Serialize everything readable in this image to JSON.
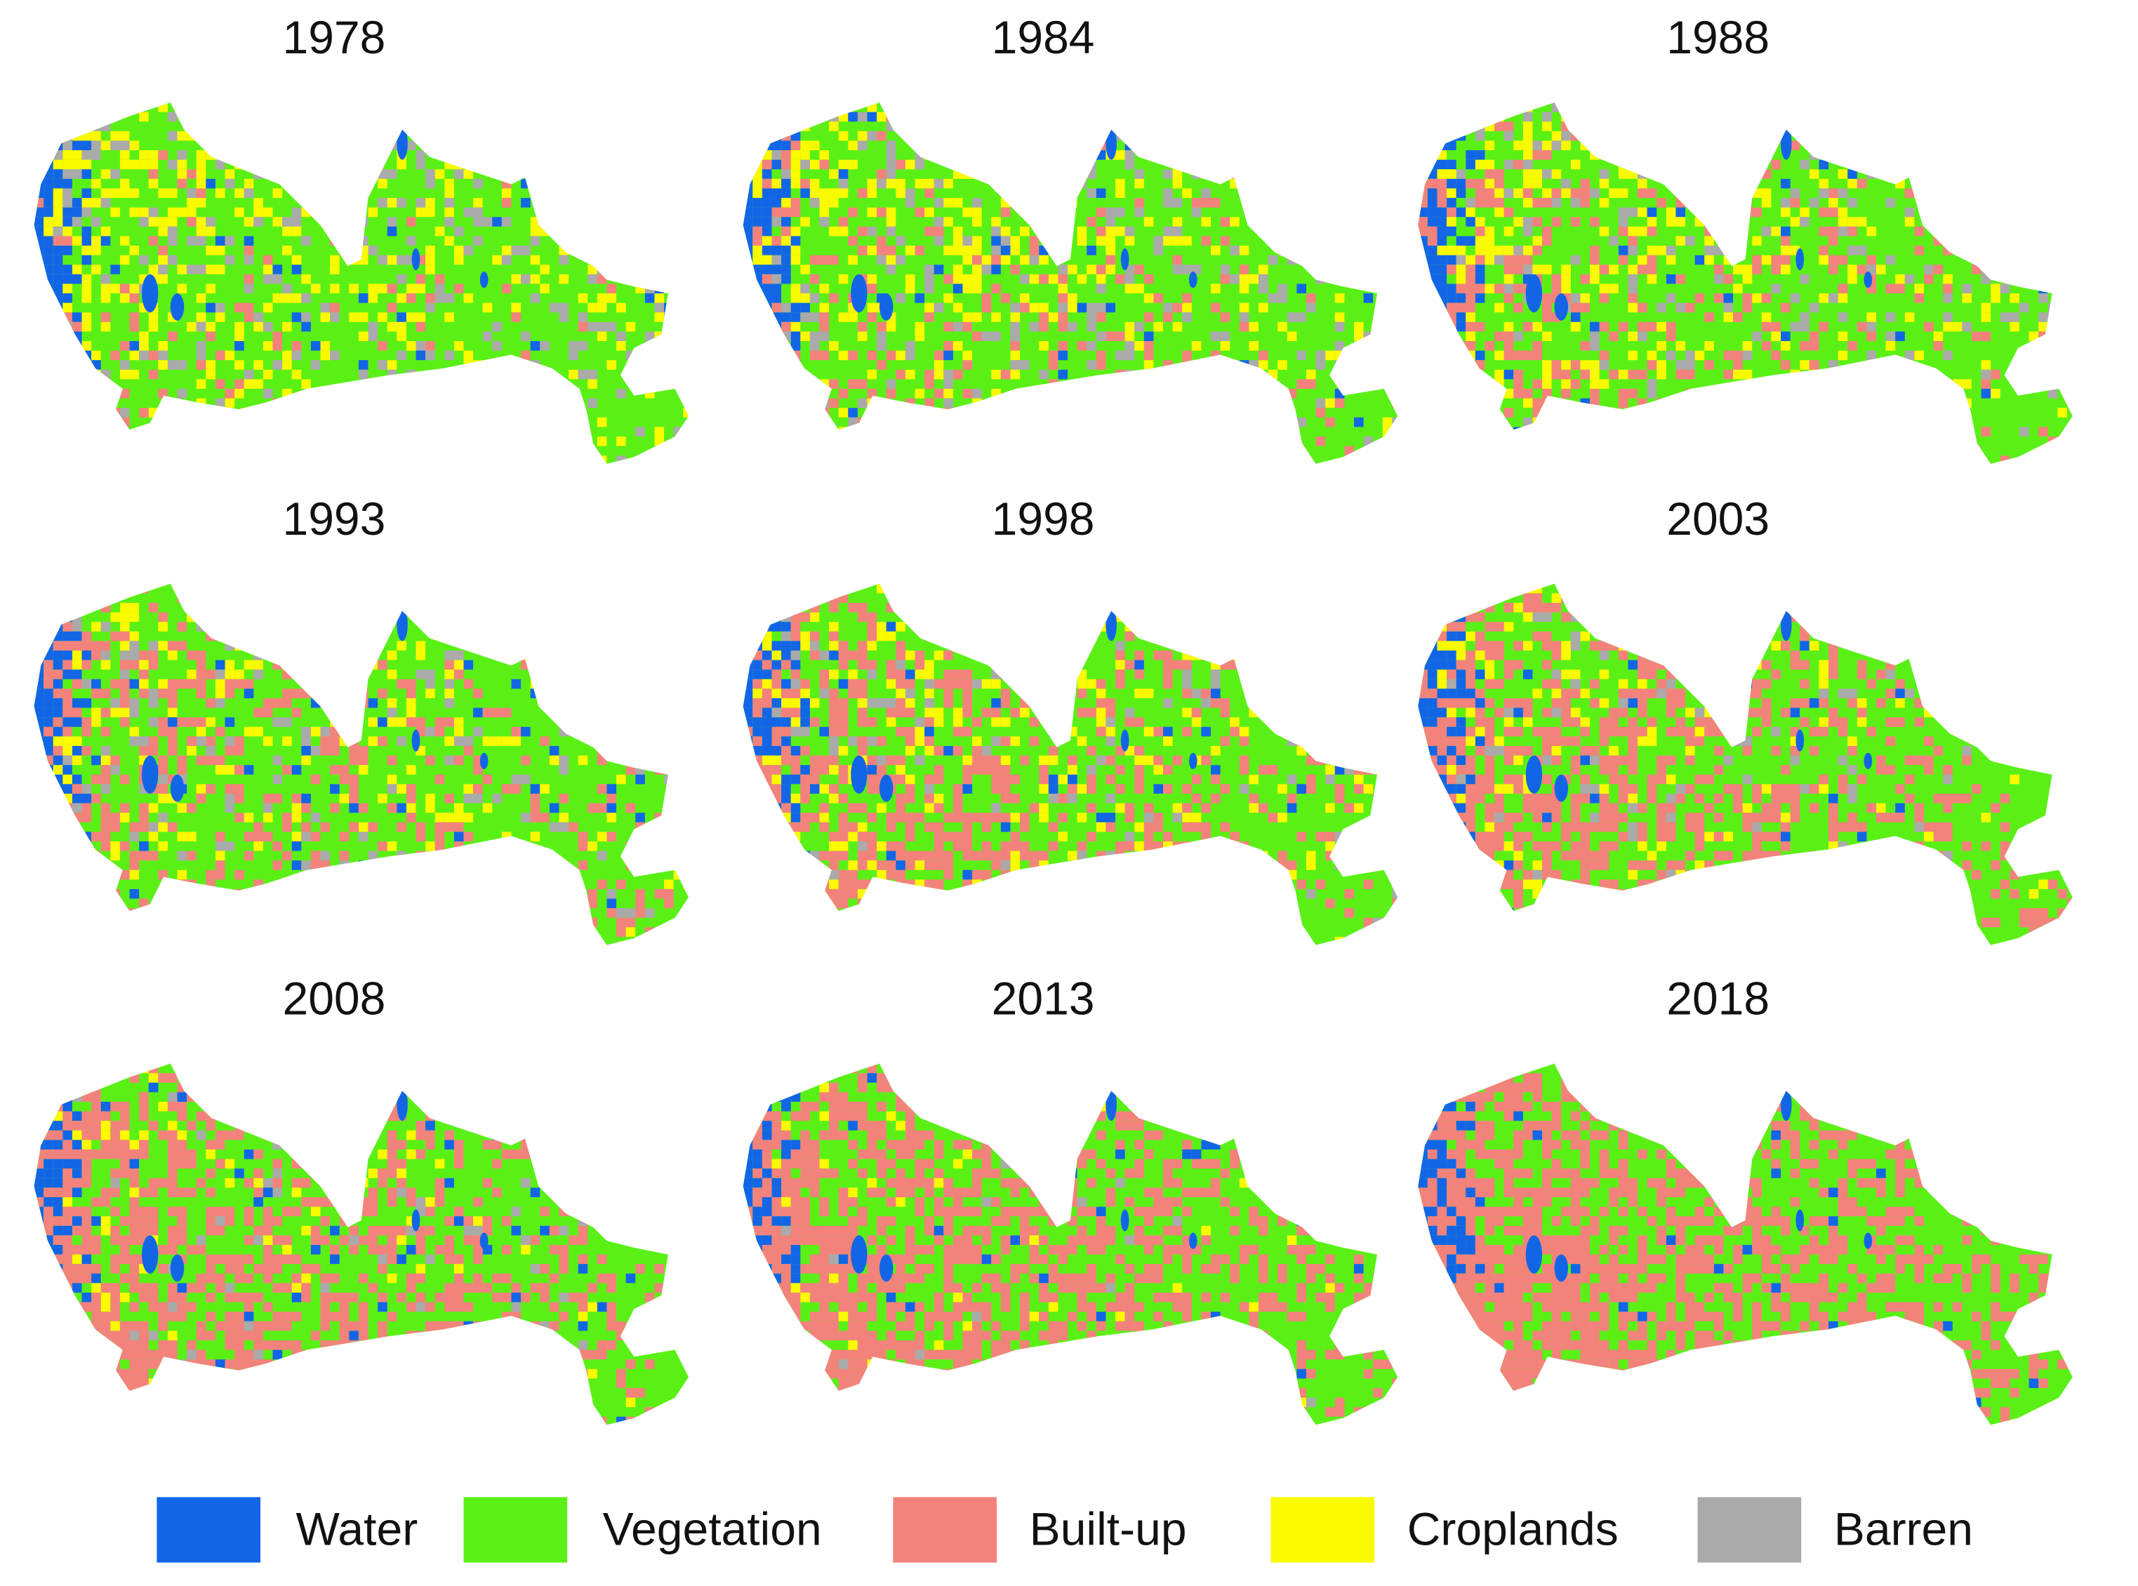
{
  "panels": [
    {
      "title": "1978"
    },
    {
      "title": "1984"
    },
    {
      "title": "1988"
    },
    {
      "title": "1993"
    },
    {
      "title": "1998"
    },
    {
      "title": "2003"
    },
    {
      "title": "2008"
    },
    {
      "title": "2013"
    },
    {
      "title": "2018"
    }
  ],
  "legend": [
    {
      "name": "Water",
      "color": "#1266e6"
    },
    {
      "name": "Vegetation",
      "color": "#5af016"
    },
    {
      "name": "Built-up",
      "color": "#f4827c"
    },
    {
      "name": "Croplands",
      "color": "#fafa00"
    },
    {
      "name": "Barren",
      "color": "#aaaaaa"
    }
  ]
}
